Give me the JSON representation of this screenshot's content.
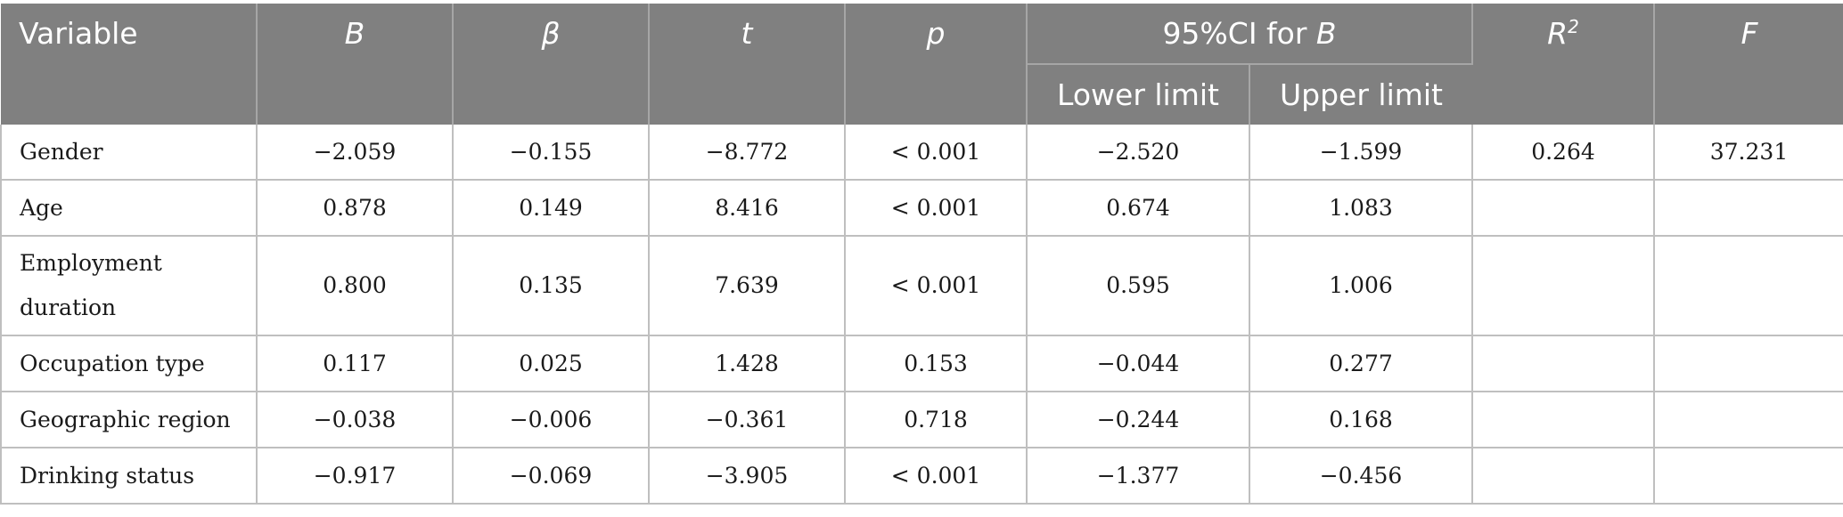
{
  "table": {
    "headers": {
      "variable": "Variable",
      "b": "B",
      "beta": "β",
      "t": "t",
      "p": "p",
      "ci_prefix": "95%CI for ",
      "ci_b": "B",
      "lower": "Lower limit",
      "upper": "Upper limit",
      "r": "R",
      "r_sup": "2",
      "f": "F"
    },
    "rows": [
      {
        "variable": "Gender",
        "b": "−2.059",
        "beta": "−0.155",
        "t": "−8.772",
        "p": "< 0.001",
        "lower": "−2.520",
        "upper": "−1.599",
        "r2": "0.264",
        "f": "37.231"
      },
      {
        "variable": "Age",
        "b": "0.878",
        "beta": "0.149",
        "t": "8.416",
        "p": "< 0.001",
        "lower": "0.674",
        "upper": "1.083",
        "r2": "",
        "f": ""
      },
      {
        "variable": "Employment duration",
        "b": "0.800",
        "beta": "0.135",
        "t": "7.639",
        "p": "< 0.001",
        "lower": "0.595",
        "upper": "1.006",
        "r2": "",
        "f": ""
      },
      {
        "variable": "Occupation type",
        "b": "0.117",
        "beta": "0.025",
        "t": "1.428",
        "p": "0.153",
        "lower": "−0.044",
        "upper": "0.277",
        "r2": "",
        "f": ""
      },
      {
        "variable": "Geographic region",
        "b": "−0.038",
        "beta": "−0.006",
        "t": "−0.361",
        "p": "0.718",
        "lower": "−0.244",
        "upper": "0.168",
        "r2": "",
        "f": ""
      },
      {
        "variable": "Drinking status",
        "b": "−0.917",
        "beta": "−0.069",
        "t": "−3.905",
        "p": "< 0.001",
        "lower": "−1.377",
        "upper": "−0.456",
        "r2": "",
        "f": ""
      }
    ]
  }
}
